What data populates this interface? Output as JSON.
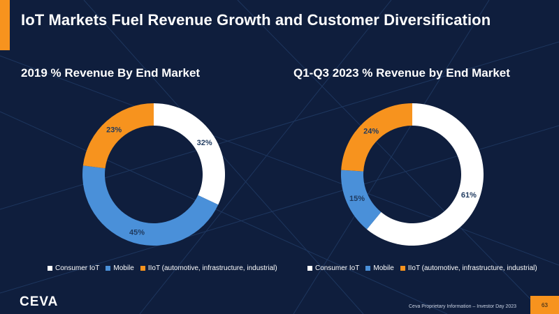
{
  "slide": {
    "title": "IoT Markets Fuel Revenue Growth and Customer Diversification",
    "footer": "Ceva Proprietary Information – Investor Day 2023",
    "page_number": "63",
    "logo_text": "CEVA"
  },
  "colors": {
    "background": "#0f1e3d",
    "accent": "#f7931e",
    "consumer_iot": "#ffffff",
    "mobile": "#4a90d9",
    "iiot": "#f7931e"
  },
  "chart_data": [
    {
      "type": "pie",
      "title": "2019 % Revenue By End Market",
      "categories": [
        "Consumer IoT",
        "Mobile",
        "IIoT (automotive, infrastructure,  industrial)"
      ],
      "values": [
        32,
        45,
        23
      ],
      "data_labels": [
        "32%",
        "45%",
        "23%"
      ],
      "colors": [
        "#ffffff",
        "#4a90d9",
        "#f7931e"
      ],
      "legend_position": "bottom"
    },
    {
      "type": "pie",
      "title": "Q1-Q3 2023 % Revenue by End Market",
      "categories": [
        "Consumer IoT",
        "Mobile",
        "IIoT (automotive, infrastructure, industrial)"
      ],
      "values": [
        61,
        15,
        24
      ],
      "data_labels": [
        "61%",
        "15%",
        "24%"
      ],
      "colors": [
        "#ffffff",
        "#4a90d9",
        "#f7931e"
      ],
      "legend_position": "bottom"
    }
  ]
}
